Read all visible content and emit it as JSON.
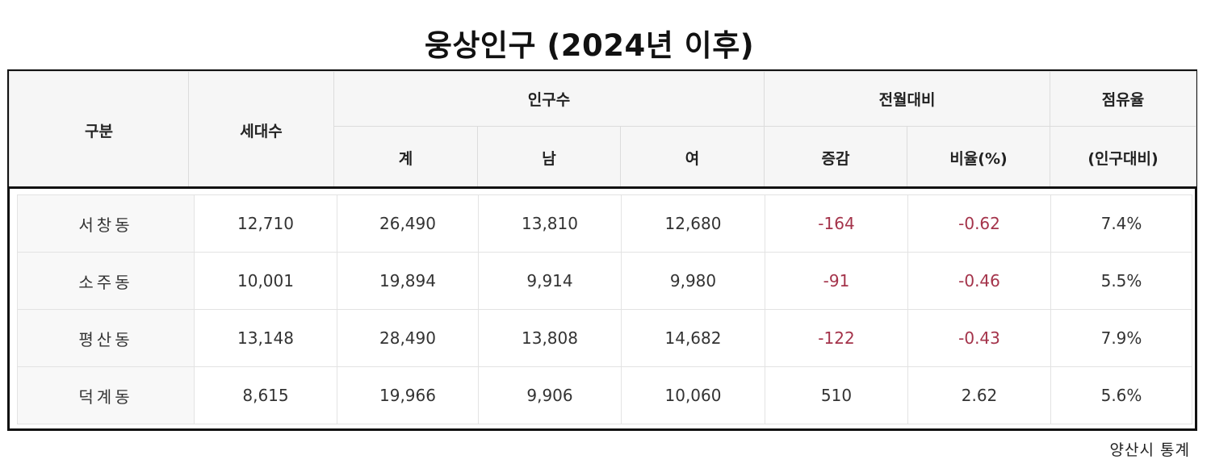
{
  "title": "웅상인구 (2024년 이후)",
  "header": {
    "category": "구분",
    "households": "세대수",
    "population": "인구수",
    "total": "계",
    "male": "남",
    "female": "여",
    "monthly_change": "전월대비",
    "change": "증감",
    "ratio": "비율(%)",
    "share": "점유율",
    "share_basis": "(인구대비)"
  },
  "rows": [
    {
      "name": "서창동",
      "households": "12,710",
      "total": "26,490",
      "male": "13,810",
      "female": "12,680",
      "change": "-164",
      "ratio": "-0.62",
      "share": "7.4%",
      "negative": true
    },
    {
      "name": "소주동",
      "households": "10,001",
      "total": "19,894",
      "male": "9,914",
      "female": "9,980",
      "change": "-91",
      "ratio": "-0.46",
      "share": "5.5%",
      "negative": true
    },
    {
      "name": "평산동",
      "households": "13,148",
      "total": "28,490",
      "male": "13,808",
      "female": "14,682",
      "change": "-122",
      "ratio": "-0.43",
      "share": "7.9%",
      "negative": true
    },
    {
      "name": "덕계동",
      "households": "8,615",
      "total": "19,966",
      "male": "9,906",
      "female": "10,060",
      "change": "510",
      "ratio": "2.62",
      "share": "5.6%",
      "negative": false
    }
  ],
  "colors": {
    "negative": "#a4334a",
    "header_bg": "#f6f6f6",
    "label_bg": "#f8f8f8"
  },
  "source": "양산시 통계"
}
